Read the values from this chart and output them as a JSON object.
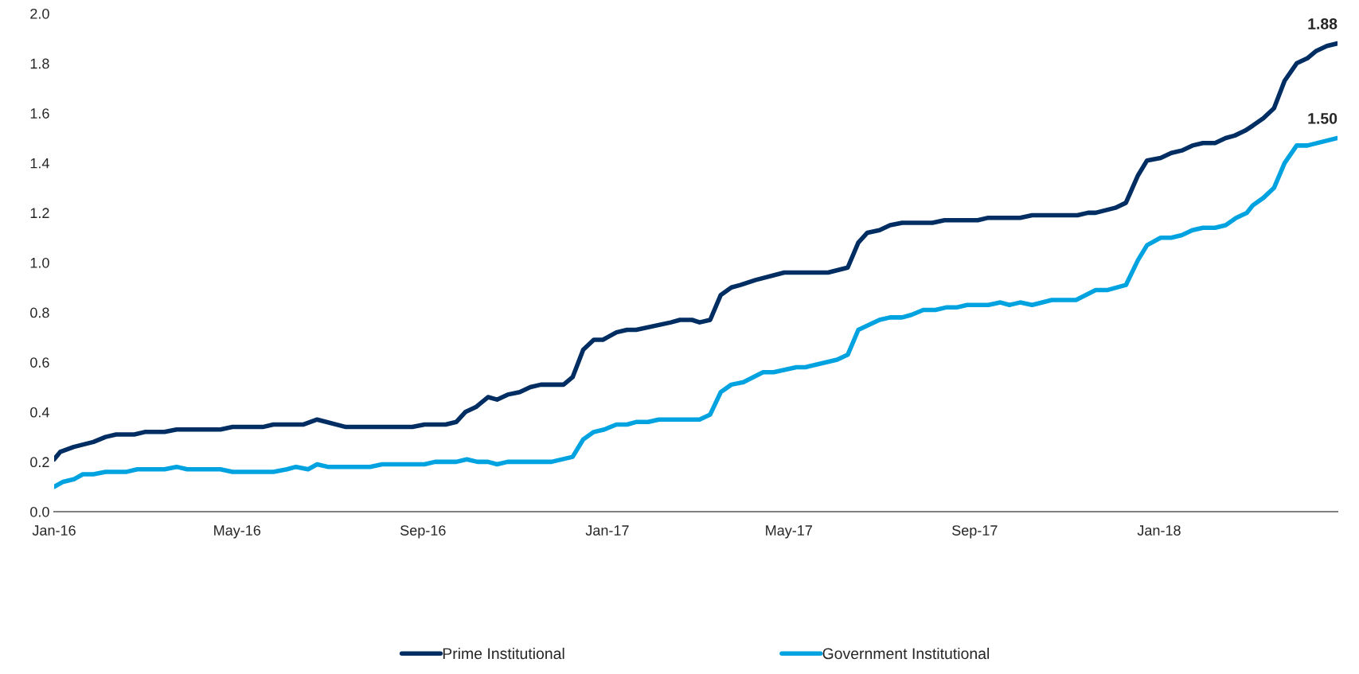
{
  "chart_data": {
    "type": "line",
    "xlim": [
      "2016-01-01",
      "2018-04-29"
    ],
    "xticks": [
      {
        "value": "2016-01-01",
        "label": "Jan-16"
      },
      {
        "value": "2016-05-01",
        "label": "May-16"
      },
      {
        "value": "2016-09-01",
        "label": "Sep-16"
      },
      {
        "value": "2017-01-01",
        "label": "Jan-17"
      },
      {
        "value": "2017-05-01",
        "label": "May-17"
      },
      {
        "value": "2017-09-01",
        "label": "Sep-17"
      },
      {
        "value": "2018-01-01",
        "label": "Jan-18"
      }
    ],
    "ylim": [
      0,
      2.0
    ],
    "yticks": [
      {
        "value": 0,
        "label": "0.0"
      },
      {
        "value": 0.2,
        "label": "0.2"
      },
      {
        "value": 0.4,
        "label": "0.4"
      },
      {
        "value": 0.6,
        "label": "0.6"
      },
      {
        "value": 0.8,
        "label": "0.8"
      },
      {
        "value": 1.0,
        "label": "1.0"
      },
      {
        "value": 1.2,
        "label": "1.2"
      },
      {
        "value": 1.4,
        "label": "1.4"
      },
      {
        "value": 1.6,
        "label": "1.6"
      },
      {
        "value": 1.8,
        "label": "1.8"
      },
      {
        "value": 2.0,
        "label": "2.0"
      }
    ],
    "grid": false,
    "legend": "bottom",
    "marker": "none",
    "line_style": "solid",
    "series": [
      {
        "name": "Prime Institutional",
        "color": "#002d62",
        "x": [
          "2016-01-01",
          "2016-01-05",
          "2016-01-14",
          "2016-01-27",
          "2016-02-04",
          "2016-02-11",
          "2016-02-23",
          "2016-03-01",
          "2016-03-14",
          "2016-03-22",
          "2016-04-20",
          "2016-04-28",
          "2016-05-18",
          "2016-05-25",
          "2016-06-14",
          "2016-06-23",
          "2016-07-12",
          "2016-08-25",
          "2016-09-02",
          "2016-09-16",
          "2016-09-23",
          "2016-09-29",
          "2016-10-06",
          "2016-10-14",
          "2016-10-20",
          "2016-10-27",
          "2016-11-04",
          "2016-11-11",
          "2016-11-18",
          "2016-12-03",
          "2016-12-09",
          "2016-12-16",
          "2016-12-23",
          "2016-12-29",
          "2017-01-07",
          "2017-01-14",
          "2017-01-20",
          "2017-02-12",
          "2017-02-18",
          "2017-02-26",
          "2017-03-03",
          "2017-03-10",
          "2017-03-17",
          "2017-03-24",
          "2017-03-30",
          "2017-04-09",
          "2017-04-28",
          "2017-05-27",
          "2017-06-09",
          "2017-06-16",
          "2017-06-22",
          "2017-06-30",
          "2017-07-07",
          "2017-07-15",
          "2017-08-04",
          "2017-08-12",
          "2017-09-03",
          "2017-09-10",
          "2017-10-01",
          "2017-10-09",
          "2017-11-08",
          "2017-11-15",
          "2017-11-20",
          "2017-12-03",
          "2017-12-10",
          "2017-12-18",
          "2017-12-24",
          "2018-01-02",
          "2018-01-09",
          "2018-01-16",
          "2018-01-23",
          "2018-01-30",
          "2018-02-07",
          "2018-02-14",
          "2018-02-20",
          "2018-02-27",
          "2018-03-04",
          "2018-03-11",
          "2018-03-18",
          "2018-03-25",
          "2018-04-02",
          "2018-04-09",
          "2018-04-15",
          "2018-04-22",
          "2018-04-29"
        ],
        "values": [
          0.21,
          0.24,
          0.26,
          0.28,
          0.3,
          0.31,
          0.31,
          0.32,
          0.32,
          0.33,
          0.33,
          0.34,
          0.34,
          0.35,
          0.35,
          0.37,
          0.34,
          0.34,
          0.35,
          0.35,
          0.36,
          0.4,
          0.42,
          0.46,
          0.45,
          0.47,
          0.48,
          0.5,
          0.51,
          0.51,
          0.54,
          0.65,
          0.69,
          0.69,
          0.72,
          0.73,
          0.73,
          0.76,
          0.77,
          0.77,
          0.76,
          0.77,
          0.87,
          0.9,
          0.91,
          0.93,
          0.96,
          0.96,
          0.98,
          1.08,
          1.12,
          1.13,
          1.15,
          1.16,
          1.16,
          1.17,
          1.17,
          1.18,
          1.18,
          1.19,
          1.19,
          1.2,
          1.2,
          1.22,
          1.24,
          1.35,
          1.41,
          1.42,
          1.44,
          1.45,
          1.47,
          1.48,
          1.48,
          1.5,
          1.51,
          1.53,
          1.55,
          1.58,
          1.62,
          1.73,
          1.8,
          1.82,
          1.85,
          1.87,
          1.88
        ]
      },
      {
        "name": "Government Institutional",
        "color": "#00a3e0",
        "x": [
          "2016-01-01",
          "2016-01-07",
          "2016-01-14",
          "2016-01-20",
          "2016-01-27",
          "2016-02-04",
          "2016-02-18",
          "2016-02-25",
          "2016-03-14",
          "2016-03-22",
          "2016-03-29",
          "2016-04-20",
          "2016-04-28",
          "2016-05-25",
          "2016-06-03",
          "2016-06-09",
          "2016-06-17",
          "2016-06-23",
          "2016-06-30",
          "2016-07-28",
          "2016-08-05",
          "2016-09-02",
          "2016-09-09",
          "2016-09-23",
          "2016-09-30",
          "2016-10-07",
          "2016-10-14",
          "2016-10-20",
          "2016-10-27",
          "2016-11-25",
          "2016-12-09",
          "2016-12-16",
          "2016-12-23",
          "2016-12-30",
          "2017-01-07",
          "2017-01-14",
          "2017-01-20",
          "2017-01-28",
          "2017-02-04",
          "2017-03-03",
          "2017-03-10",
          "2017-03-17",
          "2017-03-24",
          "2017-04-01",
          "2017-04-14",
          "2017-04-21",
          "2017-05-06",
          "2017-05-12",
          "2017-06-02",
          "2017-06-09",
          "2017-06-16",
          "2017-06-30",
          "2017-07-07",
          "2017-07-15",
          "2017-07-21",
          "2017-07-29",
          "2017-08-06",
          "2017-08-13",
          "2017-08-20",
          "2017-08-27",
          "2017-09-10",
          "2017-09-18",
          "2017-09-24",
          "2017-10-01",
          "2017-10-09",
          "2017-10-22",
          "2017-11-07",
          "2017-11-20",
          "2017-11-28",
          "2017-12-10",
          "2017-12-18",
          "2017-12-24",
          "2018-01-02",
          "2018-01-09",
          "2018-01-16",
          "2018-01-23",
          "2018-01-30",
          "2018-02-07",
          "2018-02-14",
          "2018-02-21",
          "2018-02-28",
          "2018-03-04",
          "2018-03-11",
          "2018-03-18",
          "2018-03-25",
          "2018-04-02",
          "2018-04-09",
          "2018-04-29"
        ],
        "values": [
          0.1,
          0.12,
          0.13,
          0.15,
          0.15,
          0.16,
          0.16,
          0.17,
          0.17,
          0.18,
          0.17,
          0.17,
          0.16,
          0.16,
          0.17,
          0.18,
          0.17,
          0.19,
          0.18,
          0.18,
          0.19,
          0.19,
          0.2,
          0.2,
          0.21,
          0.2,
          0.2,
          0.19,
          0.2,
          0.2,
          0.22,
          0.29,
          0.32,
          0.33,
          0.35,
          0.35,
          0.36,
          0.36,
          0.37,
          0.37,
          0.39,
          0.48,
          0.51,
          0.52,
          0.56,
          0.56,
          0.58,
          0.58,
          0.61,
          0.63,
          0.73,
          0.77,
          0.78,
          0.78,
          0.79,
          0.81,
          0.81,
          0.82,
          0.82,
          0.83,
          0.83,
          0.84,
          0.83,
          0.84,
          0.83,
          0.85,
          0.85,
          0.89,
          0.89,
          0.91,
          1.01,
          1.07,
          1.1,
          1.1,
          1.11,
          1.13,
          1.14,
          1.14,
          1.15,
          1.18,
          1.2,
          1.23,
          1.26,
          1.3,
          1.4,
          1.47,
          1.47,
          1.5
        ]
      }
    ],
    "annotations": [
      {
        "text": "1.88",
        "x": "2018-04-29",
        "y": 1.88
      },
      {
        "text": "1.50",
        "x": "2018-04-29",
        "y": 1.5
      }
    ]
  }
}
